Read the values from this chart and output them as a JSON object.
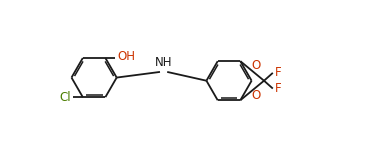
{
  "bg_color": "#ffffff",
  "bond_color": "#1a1a1a",
  "label_color_Cl": "#4a7c00",
  "label_color_O": "#cc3300",
  "label_color_F": "#cc3300",
  "label_color_NH": "#1a1a1a",
  "label_color_OH": "#cc3300",
  "figsize": [
    3.89,
    1.52
  ],
  "dpi": 100,
  "lw": 1.3,
  "lw_inner": 1.1,
  "r1": [
    1.55,
    2.55
  ],
  "r2": [
    5.85,
    2.45
  ],
  "ring_r": 0.72,
  "ao1": 0,
  "ao2": 0,
  "xlim": [
    0,
    9.5
  ],
  "ylim": [
    0.2,
    5.0
  ]
}
